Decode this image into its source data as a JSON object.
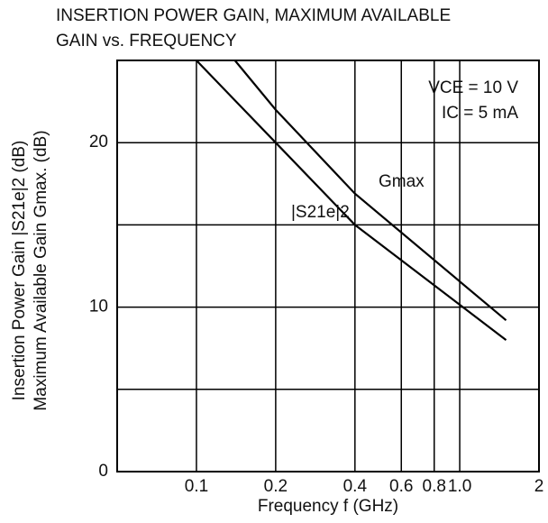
{
  "chart_data": {
    "type": "line",
    "title": [
      "INSERTION POWER GAIN, MAXIMUM AVAILABLE",
      "GAIN vs. FREQUENCY"
    ],
    "xlabel": "Frequency  f  (GHz)",
    "ylabel": [
      "Insertion Power Gain |S21e|2  (dB)",
      "Maximum Available Gain  Gmax.  (dB)"
    ],
    "xscale": "log",
    "xlim": [
      0.05,
      2
    ],
    "xticks": [
      0.1,
      0.2,
      0.4,
      0.6,
      0.8,
      {
        "value": 1,
        "label": "1.0"
      },
      2
    ],
    "ylim": [
      0,
      25
    ],
    "yticks": [
      0,
      10,
      20
    ],
    "y_minor_grid": [
      5,
      15
    ],
    "grid": true,
    "annotations": [
      "VCE = 10 V",
      "IC = 5 mA"
    ],
    "series": [
      {
        "name": "Gmax",
        "color": "#000000",
        "x": [
          0.14,
          0.2,
          0.4,
          1.5
        ],
        "values": [
          25,
          22,
          16.9,
          9.2
        ]
      },
      {
        "name": "|S21e|2",
        "color": "#000000",
        "x": [
          0.1,
          0.2,
          0.4,
          1.5
        ],
        "values": [
          25,
          20,
          15,
          8
        ]
      }
    ]
  }
}
